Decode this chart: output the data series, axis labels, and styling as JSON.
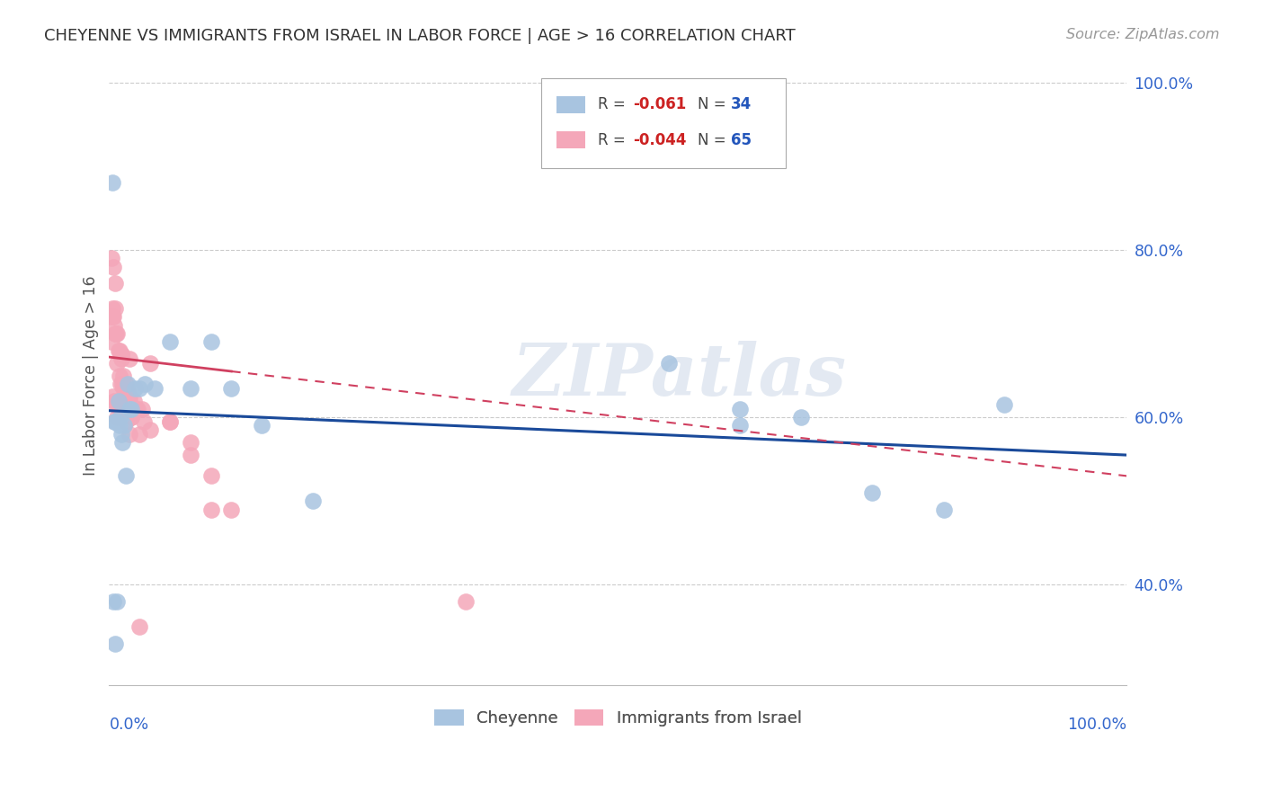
{
  "title": "CHEYENNE VS IMMIGRANTS FROM ISRAEL IN LABOR FORCE | AGE > 16 CORRELATION CHART",
  "source": "Source: ZipAtlas.com",
  "ylabel": "In Labor Force | Age > 16",
  "watermark": "ZIPatlas",
  "cheyenne_R": -0.061,
  "cheyenne_N": 34,
  "israel_R": -0.044,
  "israel_N": 65,
  "cheyenne_color": "#a8c4e0",
  "israel_color": "#f4a7b9",
  "cheyenne_line_color": "#1a4a9a",
  "israel_line_color": "#d04060",
  "xlim": [
    0.0,
    1.0
  ],
  "ylim": [
    0.28,
    1.02
  ],
  "yticks": [
    0.4,
    0.6,
    0.8,
    1.0
  ],
  "ytick_labels": [
    "40.0%",
    "60.0%",
    "80.0%",
    "100.0%"
  ],
  "cheyenne_x": [
    0.003,
    0.005,
    0.006,
    0.008,
    0.009,
    0.01,
    0.011,
    0.012,
    0.013,
    0.015,
    0.016,
    0.018,
    0.02,
    0.022,
    0.025,
    0.03,
    0.035,
    0.045,
    0.06,
    0.08,
    0.1,
    0.12,
    0.15,
    0.008,
    0.55,
    0.62,
    0.68,
    0.75,
    0.82,
    0.88,
    0.004,
    0.006,
    0.2,
    0.62
  ],
  "cheyenne_y": [
    0.88,
    0.595,
    0.595,
    0.595,
    0.62,
    0.59,
    0.6,
    0.58,
    0.57,
    0.59,
    0.53,
    0.64,
    0.61,
    0.61,
    0.635,
    0.635,
    0.64,
    0.635,
    0.69,
    0.635,
    0.69,
    0.635,
    0.59,
    0.38,
    0.665,
    0.59,
    0.6,
    0.51,
    0.49,
    0.615,
    0.38,
    0.33,
    0.5,
    0.61
  ],
  "israel_x": [
    0.001,
    0.002,
    0.003,
    0.004,
    0.005,
    0.006,
    0.007,
    0.008,
    0.009,
    0.01,
    0.011,
    0.012,
    0.013,
    0.014,
    0.015,
    0.016,
    0.017,
    0.018,
    0.019,
    0.02,
    0.021,
    0.022,
    0.003,
    0.005,
    0.007,
    0.008,
    0.01,
    0.012,
    0.014,
    0.016,
    0.018,
    0.02,
    0.022,
    0.024,
    0.026,
    0.028,
    0.03,
    0.032,
    0.034,
    0.002,
    0.004,
    0.006,
    0.008,
    0.01,
    0.012,
    0.014,
    0.016,
    0.018,
    0.02,
    0.04,
    0.06,
    0.08,
    0.1,
    0.12,
    0.02,
    0.04,
    0.06,
    0.08,
    0.1,
    0.35,
    0.003,
    0.006,
    0.012,
    0.02,
    0.03
  ],
  "israel_y": [
    0.72,
    0.69,
    0.72,
    0.72,
    0.71,
    0.7,
    0.7,
    0.665,
    0.68,
    0.65,
    0.64,
    0.67,
    0.64,
    0.635,
    0.625,
    0.62,
    0.615,
    0.61,
    0.615,
    0.625,
    0.605,
    0.6,
    0.625,
    0.62,
    0.615,
    0.6,
    0.61,
    0.615,
    0.615,
    0.595,
    0.615,
    0.62,
    0.6,
    0.62,
    0.61,
    0.61,
    0.58,
    0.61,
    0.595,
    0.79,
    0.78,
    0.76,
    0.7,
    0.68,
    0.675,
    0.65,
    0.64,
    0.63,
    0.61,
    0.585,
    0.595,
    0.57,
    0.53,
    0.49,
    0.67,
    0.665,
    0.595,
    0.555,
    0.49,
    0.38,
    0.73,
    0.73,
    0.675,
    0.58,
    0.35
  ],
  "cheyenne_trend_x0": 0.0,
  "cheyenne_trend_y0": 0.608,
  "cheyenne_trend_x1": 1.0,
  "cheyenne_trend_y1": 0.555,
  "israel_trend_x0": 0.0,
  "israel_trend_y0": 0.672,
  "israel_trend_solid_x1": 0.12,
  "israel_trend_dashed_x1": 1.0,
  "israel_trend_y1": 0.53
}
